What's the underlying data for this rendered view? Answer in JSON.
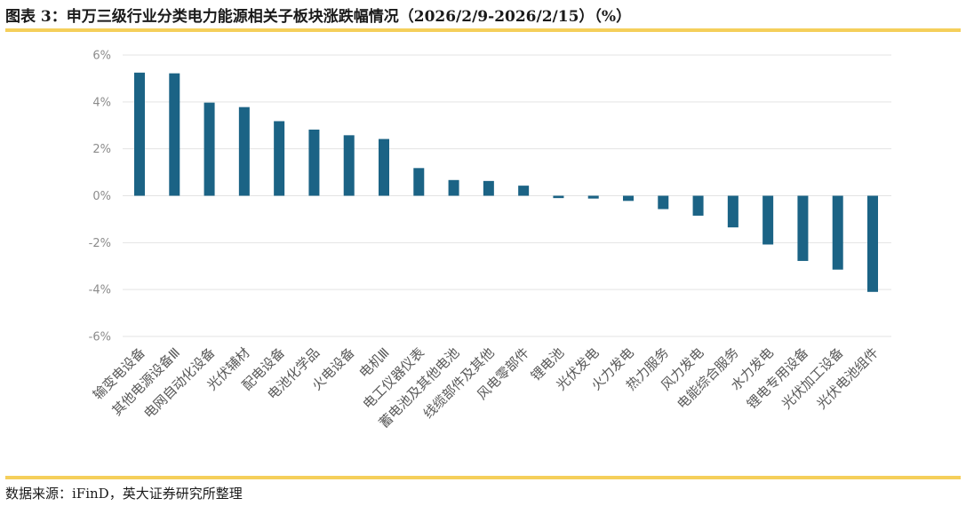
{
  "figure": {
    "title": "图表 3：申万三级行业分类电力能源相关子板块涨跌幅情况（2026/2/9-2026/2/15）（%）",
    "source": "数据来源：iFinD，英大证券研究所整理"
  },
  "colors": {
    "bar": "#1b6385",
    "grid": "#e3e3e3",
    "accent_rule": "#f5cf5b"
  },
  "chart_data": {
    "type": "bar",
    "title": "",
    "xlabel": "",
    "ylabel": "",
    "ylim": [
      -6,
      6
    ],
    "yticks": [
      6,
      4,
      2,
      0,
      -2,
      -4,
      -6
    ],
    "ytick_labels": [
      "6%",
      "4%",
      "2%",
      "0%",
      "-2%",
      "-4%",
      "-6%"
    ],
    "grid": true,
    "legend": "none",
    "categories": [
      "输变电设备",
      "其他电源设备Ⅲ",
      "电网自动化设备",
      "光伏辅材",
      "配电设备",
      "电池化学品",
      "火电设备",
      "电机Ⅲ",
      "电工仪器仪表",
      "蓄电池及其他电池",
      "线缆部件及其他",
      "风电零部件",
      "锂电池",
      "光伏发电",
      "火力发电",
      "热力服务",
      "风力发电",
      "电能综合服务",
      "水力发电",
      "锂电专用设备",
      "光伏加工设备",
      "光伏电池组件"
    ],
    "values": [
      5.25,
      5.22,
      3.97,
      3.78,
      3.18,
      2.82,
      2.58,
      2.42,
      1.18,
      0.67,
      0.63,
      0.43,
      -0.1,
      -0.12,
      -0.22,
      -0.57,
      -0.85,
      -1.35,
      -2.08,
      -2.78,
      -3.15,
      -4.1
    ]
  }
}
